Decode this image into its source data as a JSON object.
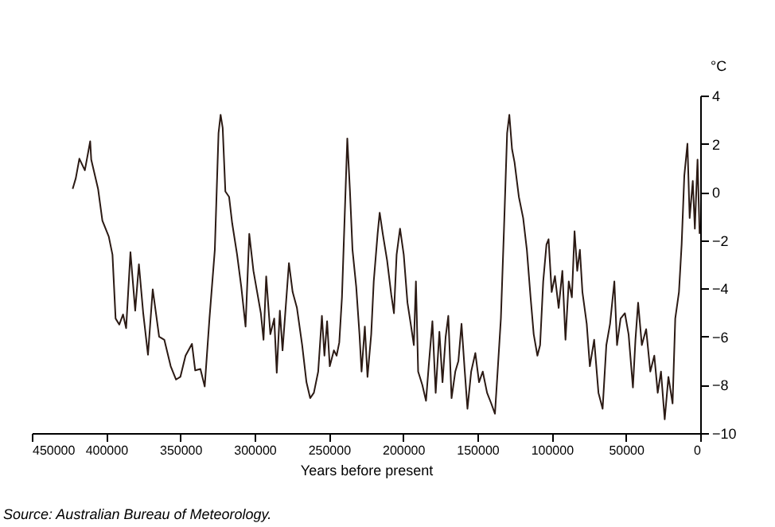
{
  "chart_data": {
    "type": "line",
    "xlabel": "Years before present",
    "ylabel": "°C",
    "annotations": [
      "Source: Australian Bureau of Meteorology."
    ],
    "xlim": [
      450000,
      0
    ],
    "xticks": [
      450000,
      400000,
      350000,
      300000,
      250000,
      200000,
      150000,
      100000,
      50000,
      0
    ],
    "ylim": [
      -10,
      4
    ],
    "yticks": [
      -10,
      -8,
      -6,
      -4,
      -2,
      0,
      2,
      4
    ],
    "grid": false,
    "line_style": "solid",
    "marker": "none",
    "series": [
      {
        "color": "#2b1a14",
        "x": [
          422500,
          420400,
          418000,
          414300,
          410700,
          410000,
          405400,
          402500,
          398200,
          395700,
          393600,
          391100,
          388600,
          386500,
          383600,
          380400,
          377900,
          375000,
          371800,
          368600,
          366500,
          364300,
          360800,
          356500,
          352900,
          350000,
          346500,
          342200,
          340000,
          336500,
          333600,
          330400,
          326800,
          324300,
          322900,
          321500,
          319700,
          317200,
          315100,
          311800,
          309000,
          306100,
          303600,
          300800,
          298300,
          295800,
          294000,
          292200,
          289400,
          286800,
          285100,
          283000,
          281200,
          276900,
          274400,
          271500,
          268000,
          265100,
          262600,
          260100,
          257200,
          254700,
          253000,
          251200,
          249400,
          246600,
          244800,
          243000,
          241200,
          239400,
          237600,
          235800,
          234100,
          231600,
          229400,
          228000,
          225800,
          224000,
          221500,
          219800,
          217200,
          215800,
          213700,
          210800,
          208000,
          206200,
          204400,
          202100,
          199600,
          197100,
          194900,
          192800,
          191400,
          189900,
          187100,
          184600,
          182800,
          180300,
          178100,
          175600,
          173500,
          171400,
          169600,
          167400,
          164900,
          162800,
          160700,
          158500,
          156700,
          154200,
          151400,
          148900,
          146400,
          143500,
          140700,
          138200,
          136400,
          134200,
          132100,
          130000,
          128500,
          126700,
          125000,
          122100,
          119200,
          116700,
          114200,
          112100,
          109600,
          107800,
          105700,
          103500,
          102100,
          100000,
          97800,
          95300,
          92800,
          90700,
          88500,
          86400,
          84600,
          82800,
          81000,
          79300,
          76400,
          74300,
          71400,
          68500,
          65700,
          63200,
          60700,
          57800,
          56000,
          53600,
          50700,
          48200,
          45300,
          43600,
          41800,
          39300,
          36400,
          33600,
          30900,
          28600,
          26400,
          23900,
          21400,
          18600,
          16800,
          14300,
          12500,
          10700,
          8600,
          7100,
          5000,
          3600,
          1800,
          400
        ],
        "values": [
          0.13,
          0.57,
          1.38,
          0.9,
          2.1,
          1.34,
          0.13,
          -1.19,
          -1.85,
          -2.6,
          -5.25,
          -5.5,
          -5.08,
          -5.65,
          -2.5,
          -4.92,
          -3.0,
          -5.03,
          -6.75,
          -4.04,
          -4.99,
          -6.0,
          -6.13,
          -7.23,
          -7.78,
          -7.67,
          -6.79,
          -6.3,
          -7.4,
          -7.34,
          -8.07,
          -5.25,
          -2.4,
          2.44,
          3.2,
          2.66,
          0.02,
          -0.2,
          -1.3,
          -2.6,
          -3.93,
          -5.58,
          -1.74,
          -3.27,
          -4.15,
          -5.03,
          -6.13,
          -3.5,
          -5.9,
          -5.25,
          -7.5,
          -4.92,
          -6.57,
          -2.95,
          -4.15,
          -4.81,
          -6.35,
          -7.89,
          -8.55,
          -8.33,
          -7.45,
          -5.14,
          -6.79,
          -5.36,
          -7.23,
          -6.57,
          -6.79,
          -6.24,
          -4.37,
          -1.08,
          2.22,
          0.02,
          -2.4,
          -3.93,
          -5.9,
          -7.45,
          -5.58,
          -7.67,
          -5.9,
          -3.71,
          -1.74,
          -0.86,
          -1.74,
          -2.84,
          -4.26,
          -5.03,
          -2.6,
          -1.52,
          -2.6,
          -4.59,
          -5.47,
          -6.35,
          -3.71,
          -7.45,
          -8.0,
          -8.66,
          -7.23,
          -5.36,
          -8.33,
          -5.8,
          -7.89,
          -6.02,
          -5.14,
          -8.55,
          -7.45,
          -7.01,
          -5.47,
          -7.45,
          -8.99,
          -7.45,
          -6.68,
          -7.89,
          -7.45,
          -8.33,
          -8.77,
          -9.2,
          -7.45,
          -5.25,
          -1.52,
          2.44,
          3.2,
          1.78,
          1.23,
          -0.2,
          -1.08,
          -2.4,
          -4.37,
          -5.9,
          -6.79,
          -6.35,
          -3.71,
          -2.18,
          -1.96,
          -4.15,
          -3.49,
          -4.81,
          -3.27,
          -6.13,
          -3.71,
          -4.37,
          -1.63,
          -3.27,
          -2.4,
          -4.15,
          -5.47,
          -7.23,
          -6.13,
          -8.33,
          -8.99,
          -6.35,
          -5.47,
          -3.71,
          -6.35,
          -5.25,
          -5.03,
          -5.91,
          -8.11,
          -6.13,
          -4.59,
          -6.35,
          -5.69,
          -7.45,
          -6.79,
          -8.33,
          -7.45,
          -9.43,
          -7.67,
          -8.77,
          -5.25,
          -4.15,
          -2.18,
          0.68,
          2.0,
          -1.08,
          0.46,
          -1.52,
          1.34,
          -1.74
        ]
      }
    ]
  }
}
